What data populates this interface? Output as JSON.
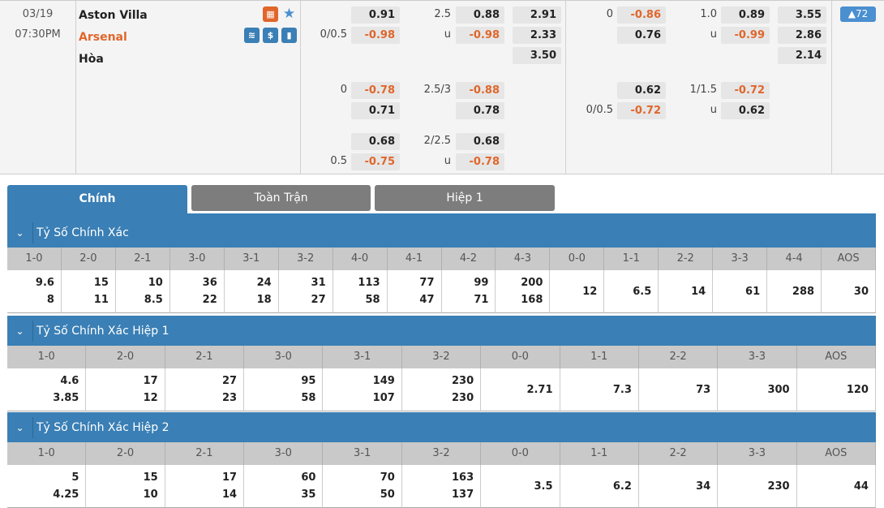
{
  "match": {
    "date": "03/19",
    "time": "07:30PM",
    "home": "Aston Villa",
    "away": "Arsenal",
    "draw": "Hòa",
    "count": "▲72",
    "icons": [
      "live-field-icon",
      "favorite-star-icon",
      "ticket-icon",
      "dollar-icon",
      "stats-icon"
    ]
  },
  "colors": {
    "accent": "#3a7fb5",
    "negative": "#e0662b",
    "home_text": "#222222",
    "away_text": "#e0662b"
  },
  "odds_full": [
    [
      "",
      "0.91",
      "2.5",
      "0.88",
      "2.91"
    ],
    [
      "0/0.5",
      "-0.98",
      "u",
      "-0.98",
      "2.33"
    ],
    [
      "",
      "",
      "",
      "",
      "3.50"
    ],
    [
      "0",
      "-0.78",
      "2.5/3",
      "-0.88",
      ""
    ],
    [
      "",
      "0.71",
      "",
      "0.78",
      ""
    ],
    [
      "",
      "0.68",
      "2/2.5",
      "0.68",
      ""
    ],
    [
      "0.5",
      "-0.75",
      "u",
      "-0.78",
      ""
    ]
  ],
  "odds_half": [
    [
      "0",
      "-0.86",
      "1.0",
      "0.89",
      "3.55"
    ],
    [
      "",
      "0.76",
      "u",
      "-0.99",
      "2.86"
    ],
    [
      "",
      "",
      "",
      "",
      "2.14"
    ],
    [
      "",
      "0.62",
      "1/1.5",
      "-0.72",
      ""
    ],
    [
      "0/0.5",
      "-0.72",
      "u",
      "0.62",
      ""
    ],
    [
      "",
      "",
      "",
      "",
      ""
    ],
    [
      "",
      "",
      "",
      "",
      ""
    ]
  ],
  "tabs": [
    "Chính",
    "Toàn Trận",
    "Hiệp 1"
  ],
  "sections": [
    {
      "title": "Tỷ Số Chính Xác",
      "cols": [
        "1-0",
        "2-0",
        "2-1",
        "3-0",
        "3-1",
        "3-2",
        "4-0",
        "4-1",
        "4-2",
        "4-3",
        "0-0",
        "1-1",
        "2-2",
        "3-3",
        "4-4",
        "AOS"
      ],
      "vals": [
        [
          "9.6",
          "8"
        ],
        [
          "15",
          "11"
        ],
        [
          "10",
          "8.5"
        ],
        [
          "36",
          "22"
        ],
        [
          "24",
          "18"
        ],
        [
          "31",
          "27"
        ],
        [
          "113",
          "58"
        ],
        [
          "77",
          "47"
        ],
        [
          "99",
          "71"
        ],
        [
          "200",
          "168"
        ],
        [
          "12"
        ],
        [
          "6.5"
        ],
        [
          "14"
        ],
        [
          "61"
        ],
        [
          "288"
        ],
        [
          "30"
        ]
      ]
    },
    {
      "title": "Tỷ Số Chính Xác Hiệp 1",
      "cols": [
        "1-0",
        "2-0",
        "2-1",
        "3-0",
        "3-1",
        "3-2",
        "0-0",
        "1-1",
        "2-2",
        "3-3",
        "AOS"
      ],
      "vals": [
        [
          "4.6",
          "3.85"
        ],
        [
          "17",
          "12"
        ],
        [
          "27",
          "23"
        ],
        [
          "95",
          "58"
        ],
        [
          "149",
          "107"
        ],
        [
          "230",
          "230"
        ],
        [
          "2.71"
        ],
        [
          "7.3"
        ],
        [
          "73"
        ],
        [
          "300"
        ],
        [
          "120"
        ]
      ]
    },
    {
      "title": "Tỷ Số Chính Xác Hiệp 2",
      "cols": [
        "1-0",
        "2-0",
        "2-1",
        "3-0",
        "3-1",
        "3-2",
        "0-0",
        "1-1",
        "2-2",
        "3-3",
        "AOS"
      ],
      "vals": [
        [
          "5",
          "4.25"
        ],
        [
          "15",
          "10"
        ],
        [
          "17",
          "14"
        ],
        [
          "60",
          "35"
        ],
        [
          "70",
          "50"
        ],
        [
          "163",
          "137"
        ],
        [
          "3.5"
        ],
        [
          "6.2"
        ],
        [
          "34"
        ],
        [
          "230"
        ],
        [
          "44"
        ]
      ]
    }
  ]
}
